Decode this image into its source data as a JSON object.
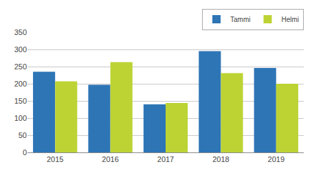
{
  "chart_data": {
    "type": "bar",
    "categories": [
      "2015",
      "2016",
      "2017",
      "2018",
      "2019"
    ],
    "series": [
      {
        "name": "Tammi",
        "color": "#2e75b6",
        "values": [
          235,
          197,
          140,
          295,
          246
        ]
      },
      {
        "name": "Helmi",
        "color": "#bdd334",
        "values": [
          207,
          263,
          144,
          231,
          200
        ]
      }
    ],
    "ylim": [
      0,
      350
    ],
    "yticks": [
      0,
      50,
      100,
      150,
      200,
      250,
      300,
      350
    ],
    "grid": true,
    "legend": "upper right"
  }
}
